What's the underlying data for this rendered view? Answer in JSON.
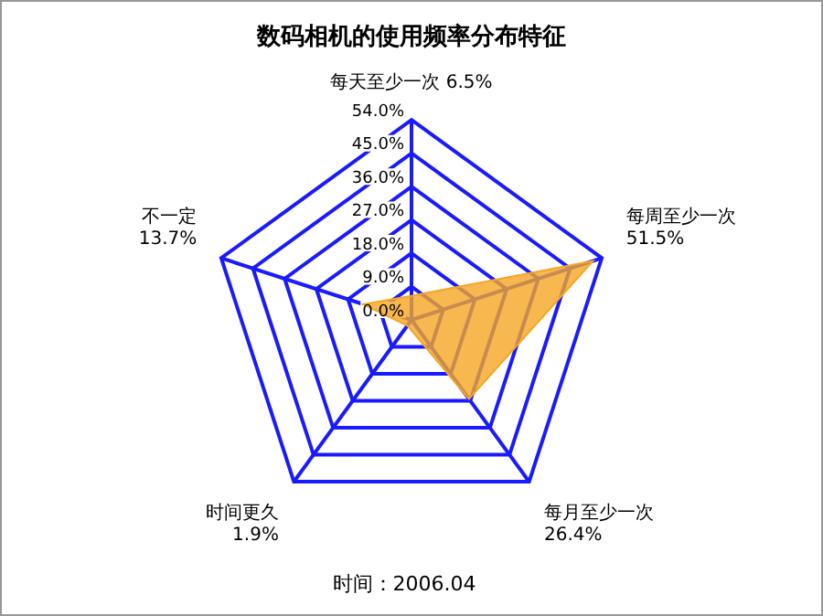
{
  "chart_data": {
    "type": "radar",
    "title": "数码相机的使用频率分布特征",
    "categories": [
      "每天至少一次 6.5%",
      "每周至少一次 51.5%",
      "每月至少一次 26.4%",
      "时间更久 1.9%",
      "不一定 13.7%"
    ],
    "series": [
      {
        "color": "#f5a623",
        "values": [
          6.5,
          51.5,
          26.4,
          1.9,
          13.7
        ]
      }
    ],
    "ylim": [
      0,
      54
    ],
    "yticks": [
      {
        "value": 0,
        "label": "0.0%"
      },
      {
        "value": 9,
        "label": "9.0%"
      },
      {
        "value": 18,
        "label": "18.0%"
      },
      {
        "value": 27,
        "label": "27.0%"
      },
      {
        "value": 36,
        "label": "36.0%"
      },
      {
        "value": 45,
        "label": "45.0%"
      },
      {
        "value": 54,
        "label": "54.0%"
      }
    ],
    "grid": true,
    "legend": false,
    "annotations": [
      "时间：2006.04"
    ]
  }
}
